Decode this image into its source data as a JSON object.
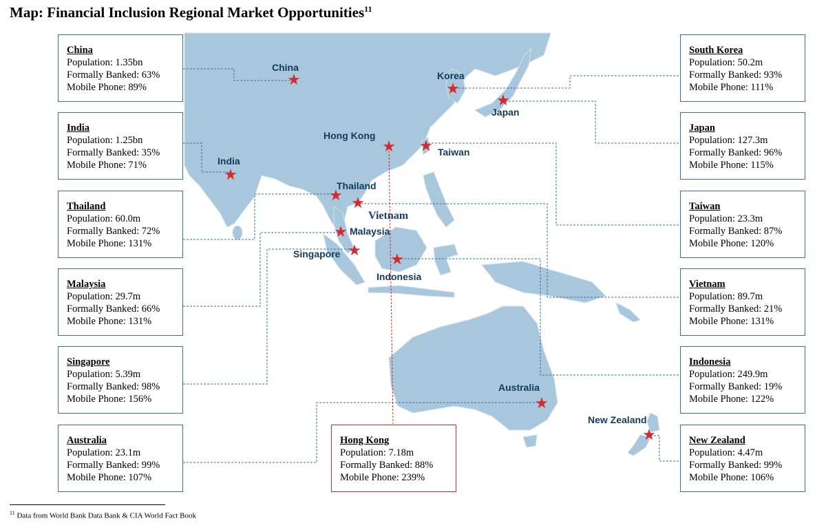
{
  "title": {
    "text": "Map: Financial Inclusion Regional Market Opportunities",
    "note_ref": "11"
  },
  "colors": {
    "land": "#a9c7dc",
    "sea": "#ffffff",
    "star": "#d42a2a",
    "leader_line": "#3a6c9a",
    "hk_highlight": "#d42a2a"
  },
  "map_labels": {
    "china": "China",
    "korea": "Korea",
    "japan": "Japan",
    "hong_kong": "Hong Kong",
    "taiwan": "Taiwan",
    "india": "India",
    "thailand": "Thailand",
    "vietnam": "Vietnam",
    "malaysia": "Malaysia",
    "singapore": "Singapore",
    "indonesia": "Indonesia",
    "australia": "Australia",
    "new_zealand": "New Zealand"
  },
  "boxes": {
    "china": {
      "name": "China",
      "population": "Population: 1.35bn",
      "banked": "Formally Banked: 63%",
      "mobile": "Mobile Phone: 89%"
    },
    "india": {
      "name": "India",
      "population": "Population: 1.25bn",
      "banked": "Formally Banked: 35%",
      "mobile": "Mobile Phone: 71%"
    },
    "thailand": {
      "name": "Thailand",
      "population": "Population: 60.0m",
      "banked": "Formally Banked: 72%",
      "mobile": "Mobile Phone: 131%"
    },
    "malaysia": {
      "name": "Malaysia",
      "population": "Population: 29.7m",
      "banked": "Formally Banked: 66%",
      "mobile": "Mobile Phone: 131%"
    },
    "singapore": {
      "name": "Singapore",
      "population": "Population: 5.39m",
      "banked": "Formally Banked: 98%",
      "mobile": "Mobile Phone: 156%"
    },
    "australia": {
      "name": "Australia",
      "population": "Population: 23.1m",
      "banked": "Formally Banked: 99%",
      "mobile": "Mobile Phone: 107%"
    },
    "hong_kong": {
      "name": "Hong Kong",
      "population": "Population: 7.18m",
      "banked": "Formally Banked: 88%",
      "mobile": "Mobile Phone: 239%"
    },
    "south_korea": {
      "name": "South Korea",
      "population": "Population: 50.2m",
      "banked": "Formally Banked: 93%",
      "mobile": "Mobile Phone: 111%"
    },
    "japan": {
      "name": "Japan",
      "population": "Population: 127.3m",
      "banked": "Formally Banked: 96%",
      "mobile": "Mobile Phone: 115%"
    },
    "taiwan": {
      "name": "Taiwan",
      "population": "Population: 23.3m",
      "banked": "Formally Banked: 87%",
      "mobile": "Mobile Phone: 120%"
    },
    "vietnam": {
      "name": "Vietnam",
      "population": "Population: 89.7m",
      "banked": "Formally Banked: 21%",
      "mobile": "Mobile Phone: 131%"
    },
    "indonesia": {
      "name": "Indonesia",
      "population": "Population: 249.9m",
      "banked": "Formally Banked: 19%",
      "mobile": "Mobile Phone: 122%"
    },
    "new_zealand": {
      "name": "New Zealand",
      "population": "Population: 4.47m",
      "banked": "Formally Banked: 99%",
      "mobile": "Mobile Phone: 106%"
    }
  },
  "footnote": {
    "ref": "11",
    "text": "Data from World Bank Data Bank & CIA World Fact Book"
  }
}
